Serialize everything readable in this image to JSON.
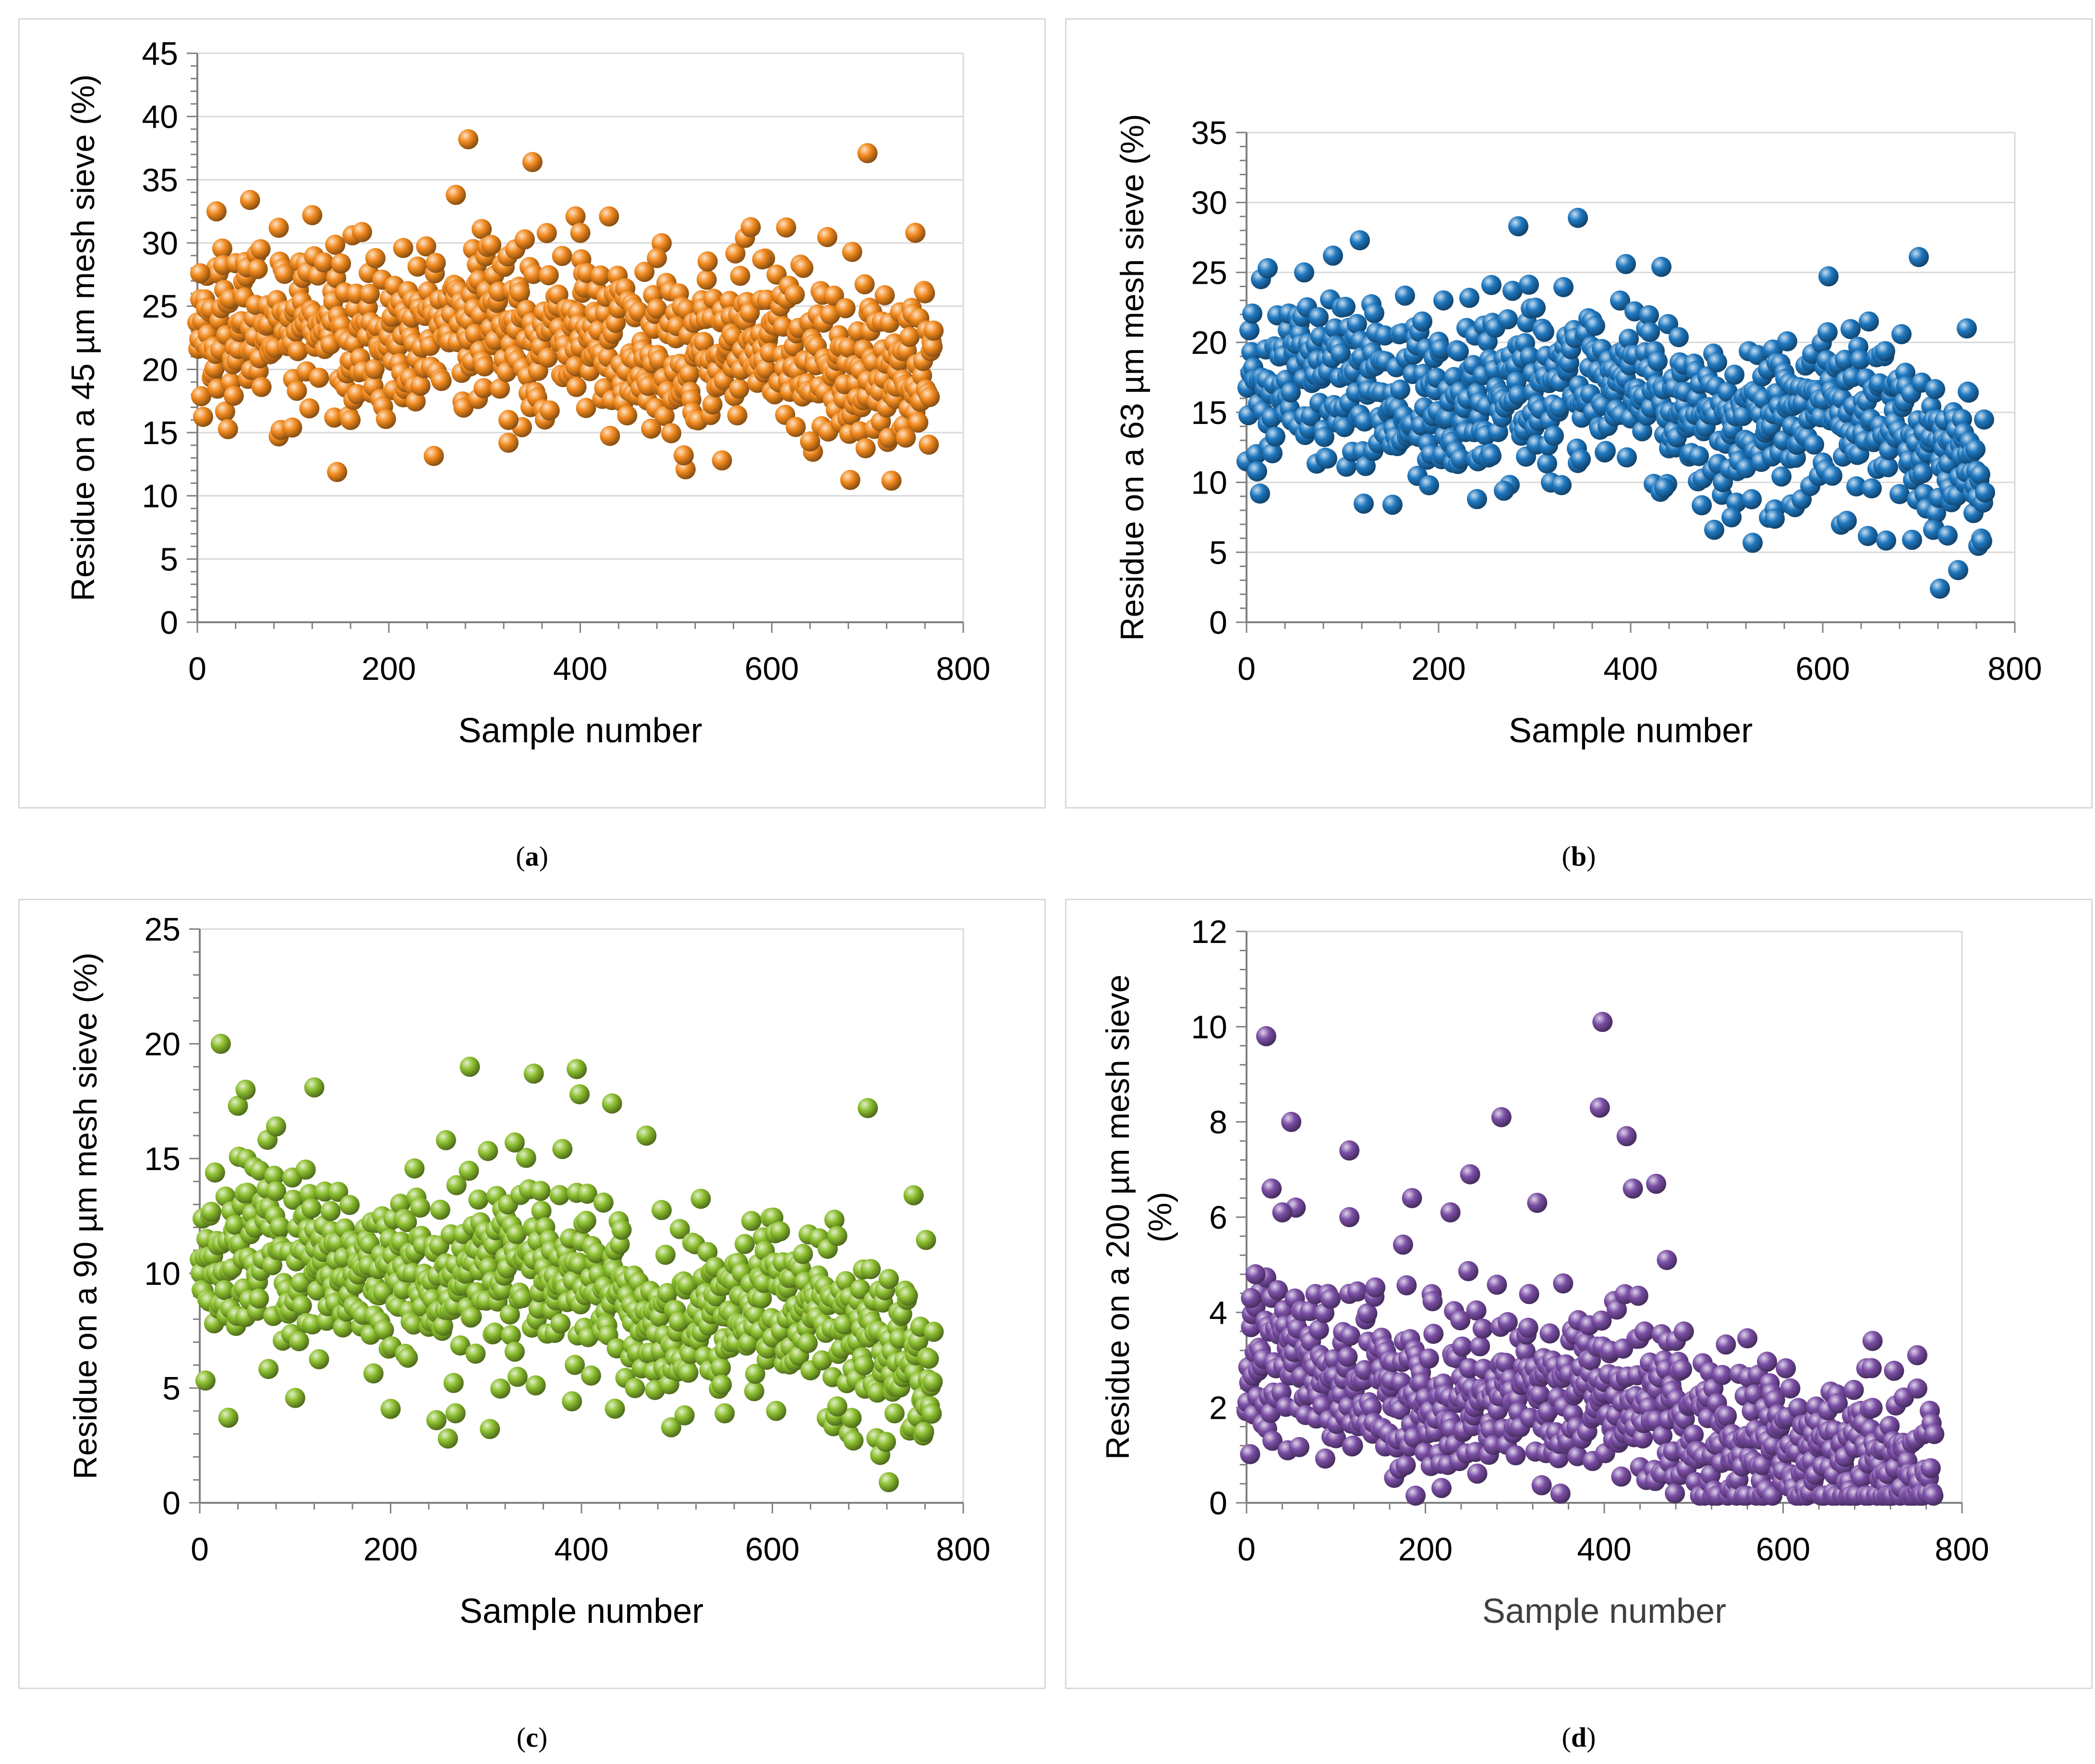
{
  "colors": {
    "a": "#f28a1e",
    "b": "#1f78c0",
    "c": "#8cbf2f",
    "d": "#7b4fa6",
    "grid": "#d9d9d9",
    "axis": "#808080",
    "text": "#000000",
    "d_xlabel": "#404040"
  },
  "chart_data": [
    {
      "id": "a",
      "type": "scatter",
      "caption": "a",
      "xlabel": "Sample number",
      "ylabel": "Residue on a 45 µm mesh sieve (%)",
      "xlim": [
        0,
        800
      ],
      "ylim": [
        0,
        45
      ],
      "xticks": [
        0,
        200,
        400,
        600,
        800
      ],
      "yticks": [
        0,
        5,
        10,
        15,
        20,
        25,
        30,
        35,
        40,
        45
      ],
      "xtick_labels": [
        "0",
        "200",
        "400",
        "600",
        "800"
      ],
      "ytick_labels": [
        "0",
        "5",
        "10",
        "15",
        "20",
        "25",
        "30",
        "35",
        "40",
        "45"
      ],
      "grid": true,
      "marker": "sphere",
      "n_points": 770,
      "trend": [
        [
          0,
          23
        ],
        [
          100,
          24
        ],
        [
          200,
          22
        ],
        [
          300,
          24
        ],
        [
          400,
          23
        ],
        [
          500,
          20
        ],
        [
          580,
          24
        ],
        [
          650,
          21
        ],
        [
          770,
          19
        ]
      ],
      "spread": 3.2,
      "outliers": [
        [
          3,
          27.6
        ],
        [
          20,
          32.5
        ],
        [
          55,
          33.4
        ],
        [
          85,
          31.2
        ],
        [
          120,
          32.2
        ],
        [
          215,
          29.6
        ],
        [
          270,
          33.8
        ],
        [
          283,
          38.2
        ],
        [
          350,
          36.4
        ],
        [
          395,
          32.1
        ],
        [
          400,
          30.8
        ],
        [
          430,
          32.1
        ],
        [
          480,
          28.8
        ],
        [
          590,
          28.7
        ],
        [
          700,
          37.1
        ],
        [
          750,
          30.8
        ],
        [
          99,
          15.4
        ],
        [
          160,
          16.0
        ],
        [
          325,
          14.2
        ],
        [
          325,
          16.0
        ],
        [
          510,
          12.1
        ],
        [
          508,
          13.2
        ],
        [
          548,
          12.8
        ],
        [
          640,
          14.3
        ],
        [
          725,
          11.2
        ],
        [
          740,
          14.6
        ]
      ]
    },
    {
      "id": "b",
      "type": "scatter",
      "caption": "b",
      "xlabel": "Sample number",
      "ylabel": "Residue on a 63 µm mesh sieve (%)",
      "xlim": [
        0,
        800
      ],
      "ylim": [
        0,
        35
      ],
      "xticks": [
        0,
        200,
        400,
        600,
        800
      ],
      "yticks": [
        0,
        5,
        10,
        15,
        20,
        25,
        30,
        35
      ],
      "xtick_labels": [
        "0",
        "200",
        "400",
        "600",
        "800"
      ],
      "ytick_labels": [
        "0",
        "5",
        "10",
        "15",
        "20",
        "25",
        "30",
        "35"
      ],
      "grid": true,
      "marker": "sphere",
      "n_points": 770,
      "trend": [
        [
          0,
          15
        ],
        [
          50,
          18
        ],
        [
          100,
          17
        ],
        [
          200,
          16
        ],
        [
          300,
          17
        ],
        [
          400,
          17
        ],
        [
          500,
          14
        ],
        [
          600,
          15
        ],
        [
          700,
          13
        ],
        [
          770,
          11
        ]
      ],
      "spread": 3.0,
      "outliers": [
        [
          22,
          25.3
        ],
        [
          60,
          25.0
        ],
        [
          90,
          26.2
        ],
        [
          118,
          27.3
        ],
        [
          255,
          24.1
        ],
        [
          283,
          28.3
        ],
        [
          345,
          28.9
        ],
        [
          395,
          25.6
        ],
        [
          432,
          25.4
        ],
        [
          700,
          26.1
        ],
        [
          750,
          21.0
        ],
        [
          152,
          8.4
        ],
        [
          240,
          8.8
        ],
        [
          268,
          9.4
        ],
        [
          328,
          9.8
        ],
        [
          435,
          9.6
        ],
        [
          505,
          7.5
        ],
        [
          550,
          7.4
        ],
        [
          715,
          6.6
        ],
        [
          722,
          2.4
        ],
        [
          730,
          6.2
        ]
      ]
    },
    {
      "id": "c",
      "type": "scatter",
      "caption": "c",
      "xlabel": "Sample number",
      "ylabel": "Residue on a 90 µm mesh sieve (%)",
      "xlim": [
        0,
        800
      ],
      "ylim": [
        0,
        25
      ],
      "xticks": [
        0,
        200,
        400,
        600,
        800
      ],
      "yticks": [
        0,
        5,
        10,
        15,
        20,
        25
      ],
      "xtick_labels": [
        "0",
        "200",
        "400",
        "600",
        "800"
      ],
      "ytick_labels": [
        "0",
        "5",
        "10",
        "15",
        "20",
        "25"
      ],
      "grid": false,
      "marker": "sphere",
      "n_points": 770,
      "trend": [
        [
          0,
          9
        ],
        [
          50,
          12
        ],
        [
          100,
          10
        ],
        [
          200,
          9.5
        ],
        [
          300,
          10
        ],
        [
          400,
          9.5
        ],
        [
          500,
          7.5
        ],
        [
          600,
          9
        ],
        [
          700,
          7
        ],
        [
          770,
          6
        ]
      ],
      "spread": 2.0,
      "outliers": [
        [
          22,
          20.0
        ],
        [
          40,
          17.3
        ],
        [
          48,
          18.0
        ],
        [
          80,
          16.4
        ],
        [
          120,
          18.1
        ],
        [
          258,
          15.8
        ],
        [
          283,
          19.0
        ],
        [
          330,
          15.7
        ],
        [
          350,
          18.7
        ],
        [
          395,
          18.9
        ],
        [
          398,
          17.8
        ],
        [
          432,
          17.4
        ],
        [
          468,
          16.0
        ],
        [
          700,
          17.2
        ],
        [
          748,
          13.4
        ],
        [
          248,
          3.6
        ],
        [
          260,
          2.8
        ],
        [
          268,
          3.9
        ],
        [
          435,
          4.1
        ],
        [
          550,
          3.9
        ],
        [
          668,
          4.2
        ],
        [
          722,
          0.9
        ],
        [
          728,
          3.9
        ]
      ]
    },
    {
      "id": "d",
      "type": "scatter",
      "caption": "d",
      "xlabel": "Sample number",
      "ylabel": "Residue on a 200 µm mesh sieve (%)",
      "xlim": [
        0,
        800
      ],
      "ylim": [
        0,
        12
      ],
      "xticks": [
        0,
        200,
        400,
        600,
        800
      ],
      "yticks": [
        0,
        2,
        4,
        6,
        8,
        10,
        12
      ],
      "xtick_labels": [
        "0",
        "200",
        "400",
        "600",
        "800"
      ],
      "ytick_labels": [
        "0",
        "2",
        "4",
        "6",
        "8",
        "10",
        "12"
      ],
      "grid": false,
      "marker": "sphere",
      "n_points": 770,
      "trend": [
        [
          0,
          2.5
        ],
        [
          50,
          3.2
        ],
        [
          100,
          2.4
        ],
        [
          200,
          2.2
        ],
        [
          300,
          2.2
        ],
        [
          400,
          2.3
        ],
        [
          500,
          1.6
        ],
        [
          600,
          1.2
        ],
        [
          700,
          1.0
        ],
        [
          770,
          0.8
        ]
      ],
      "spread": 0.9,
      "outliers": [
        [
          22,
          9.8
        ],
        [
          28,
          6.6
        ],
        [
          50,
          8.0
        ],
        [
          55,
          6.2
        ],
        [
          40,
          6.1
        ],
        [
          115,
          7.4
        ],
        [
          115,
          6.0
        ],
        [
          185,
          6.4
        ],
        [
          228,
          6.1
        ],
        [
          250,
          6.9
        ],
        [
          285,
          8.1
        ],
        [
          325,
          6.3
        ],
        [
          398,
          10.1
        ],
        [
          395,
          8.3
        ],
        [
          425,
          7.7
        ],
        [
          432,
          6.6
        ],
        [
          458,
          6.7
        ],
        [
          470,
          5.1
        ],
        [
          700,
          3.4
        ],
        [
          750,
          3.1
        ],
        [
          750,
          2.4
        ],
        [
          5,
          4.3
        ],
        [
          10,
          4.8
        ]
      ]
    }
  ]
}
